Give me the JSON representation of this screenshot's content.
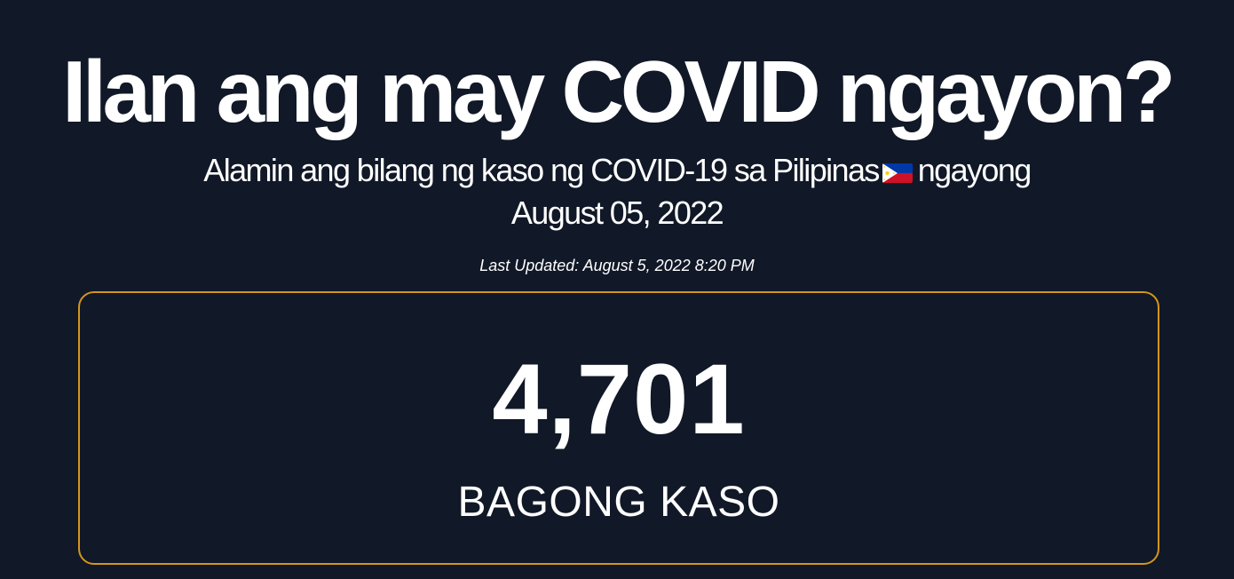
{
  "header": {
    "title": "Ilan ang may COVID ngayon?",
    "subtitle_before_flag": "Alamin ang bilang ng kaso ng COVID-19 sa Pilipinas",
    "flag_icon": "philippines-flag-icon",
    "subtitle_after_flag": "ngayong",
    "date": "August 05, 2022",
    "last_updated": "Last Updated: August 5, 2022 8:20 PM"
  },
  "stats": {
    "new_cases_value": "4,701",
    "new_cases_label": "BAGONG KASO"
  },
  "colors": {
    "background": "#111827",
    "text": "#ffffff",
    "card_border": "#d4961c",
    "flag_blue": "#0038a8",
    "flag_red": "#ce1126",
    "flag_sun": "#fcd116"
  }
}
